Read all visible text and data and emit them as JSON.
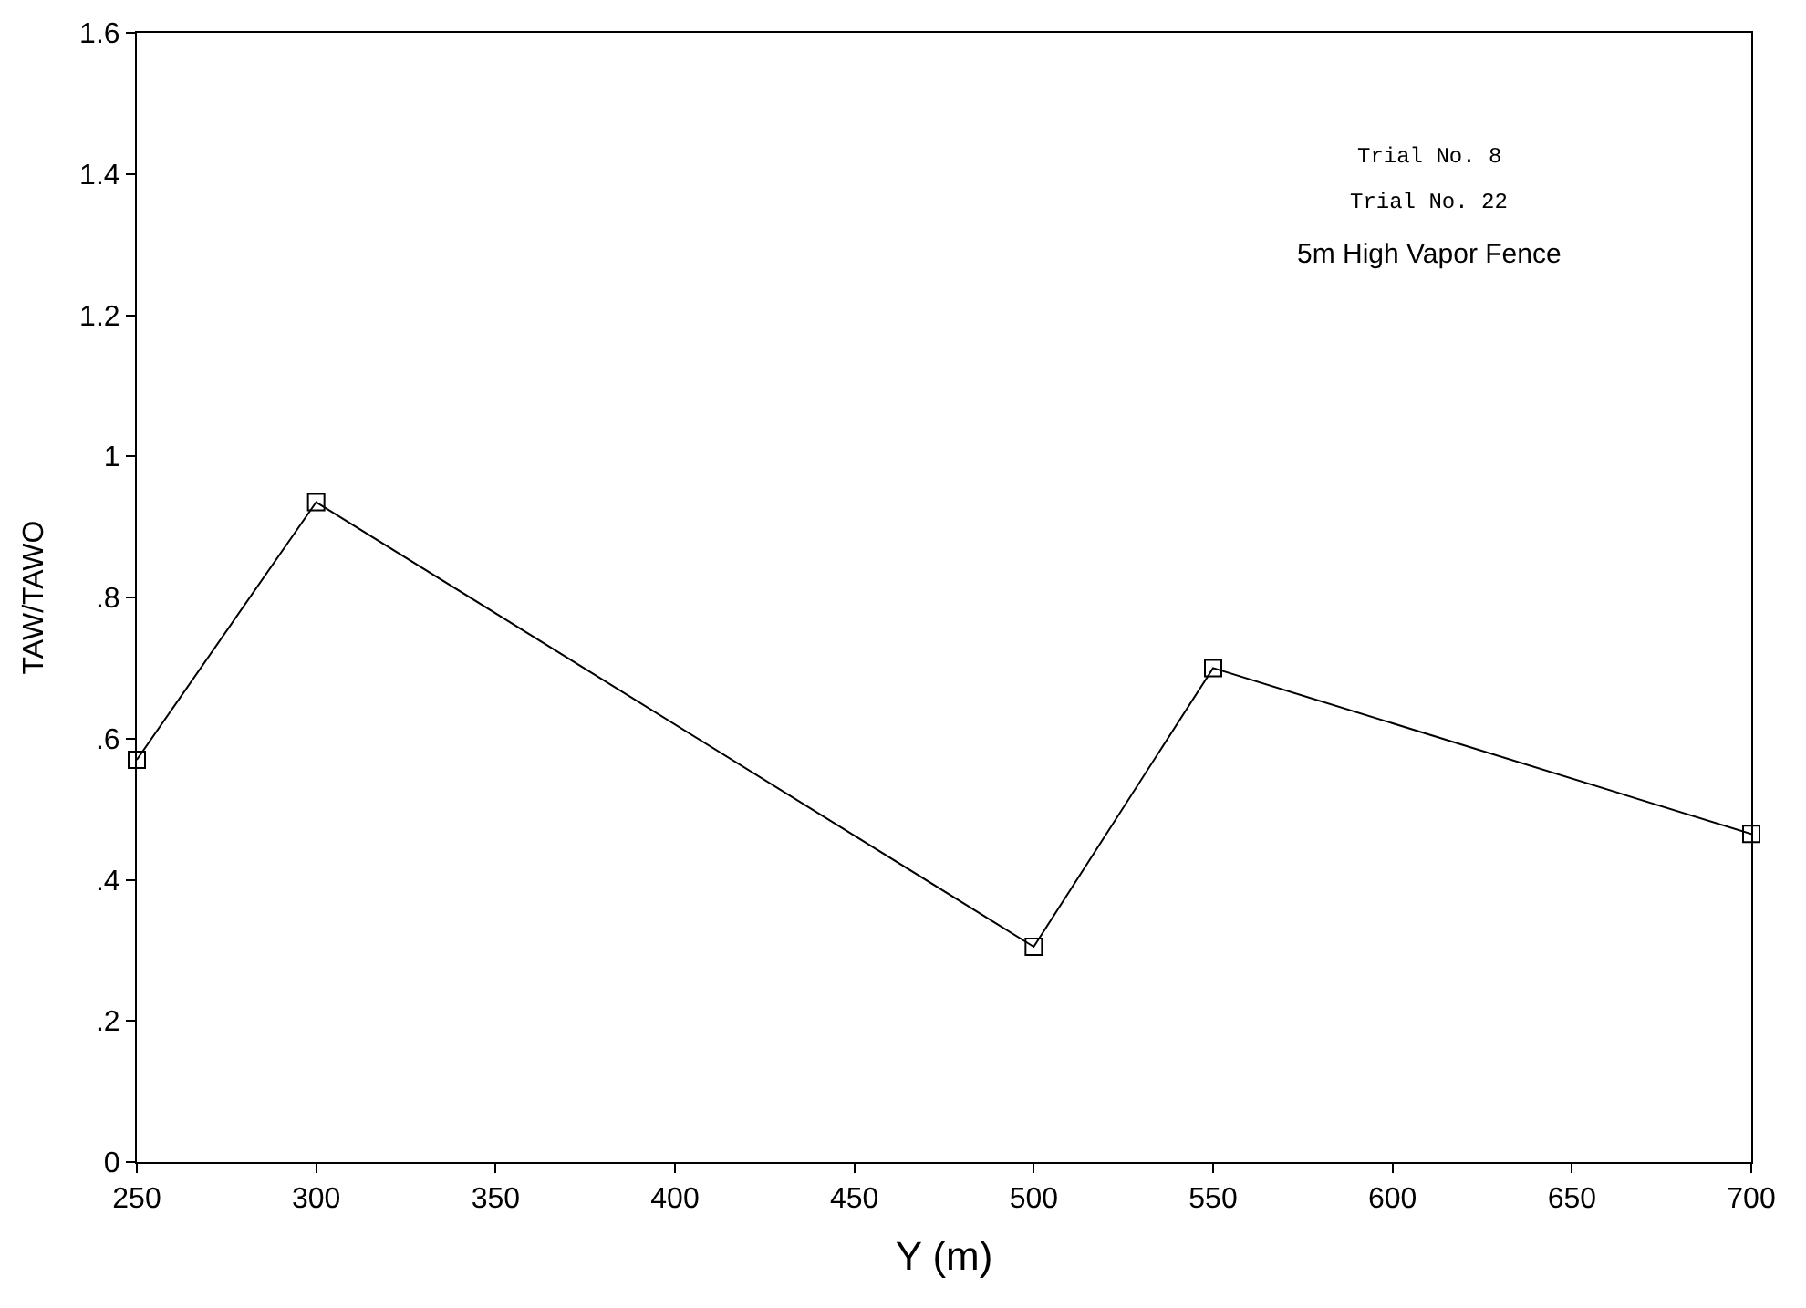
{
  "chart_data": {
    "type": "line",
    "xlabel": "Y (m)",
    "ylabel": "TAW/TAWO",
    "x": [
      250,
      300,
      500,
      550,
      700
    ],
    "series": [
      {
        "color": "#000000",
        "values": [
          0.57,
          0.935,
          0.305,
          0.7,
          0.465
        ]
      }
    ],
    "xlim": [
      250,
      700
    ],
    "ylim": [
      0,
      1.6
    ],
    "xticks": [
      250,
      300,
      350,
      400,
      450,
      500,
      550,
      600,
      650,
      700
    ],
    "yticks": [
      0,
      {
        "value": 0.2,
        "label": ".2"
      },
      {
        "value": 0.4,
        "label": ".4"
      },
      {
        "value": 0.6,
        "label": ".6"
      },
      {
        "value": 0.8,
        "label": ".8"
      },
      1,
      1.2,
      1.4,
      1.6
    ],
    "annotations": [
      "Trial No. 8",
      "Trial No. 22",
      "5m High Vapor Fence"
    ],
    "marker": "square",
    "line_style": "solid"
  }
}
